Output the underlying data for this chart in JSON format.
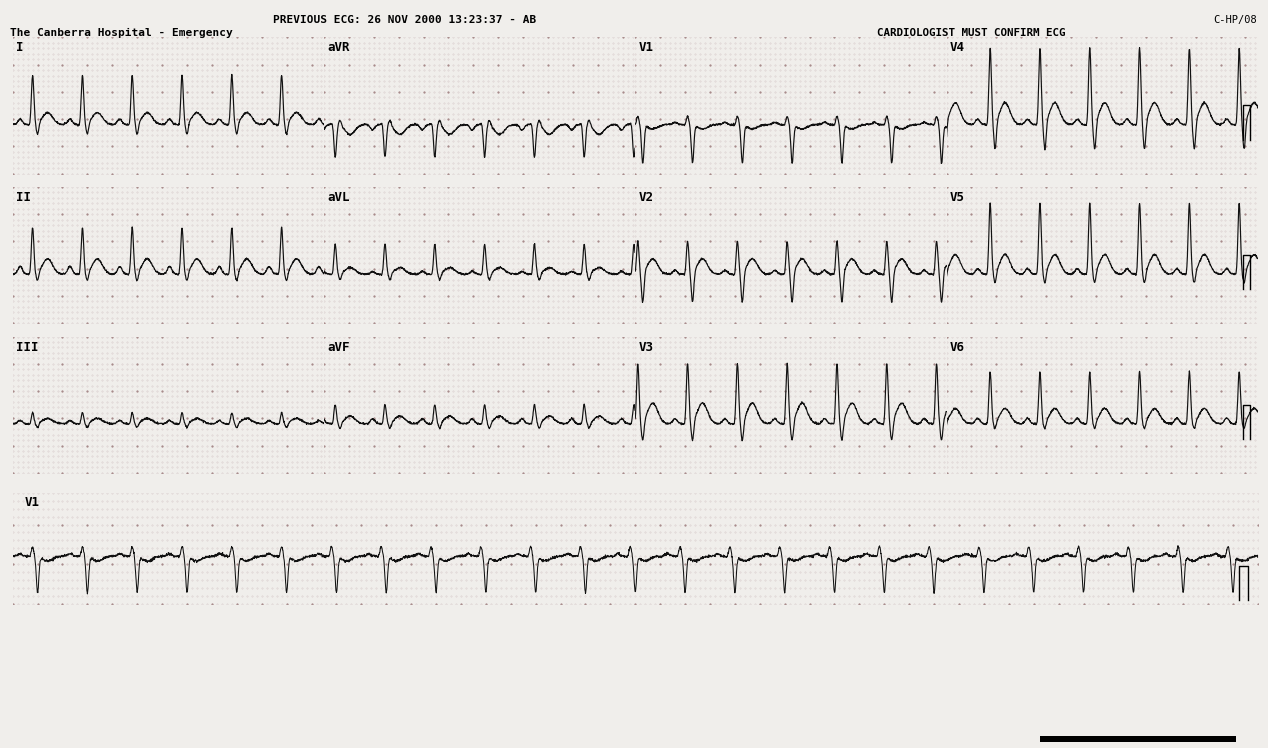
{
  "title_line1": "PREVIOUS ECG: 26 NOV 2000 13:23:37 - AB",
  "title_line2": "The Canberra Hospital - Emergency",
  "top_right1": "C-HP/08",
  "top_right2": "CARDIOLOGIST MUST CONFIRM ECG",
  "bg_color": "#f0eeeb",
  "grid_dot_color": "#c8b8b8",
  "ecg_color": "#111111",
  "heart_rate": 150,
  "leads_row1": [
    "I",
    "aVR",
    "V1",
    "V4"
  ],
  "leads_row2": [
    "II",
    "aVL",
    "V2",
    "V5"
  ],
  "leads_row3": [
    "III",
    "aVF",
    "V3",
    "V6"
  ],
  "rhythm_lead": "V1"
}
